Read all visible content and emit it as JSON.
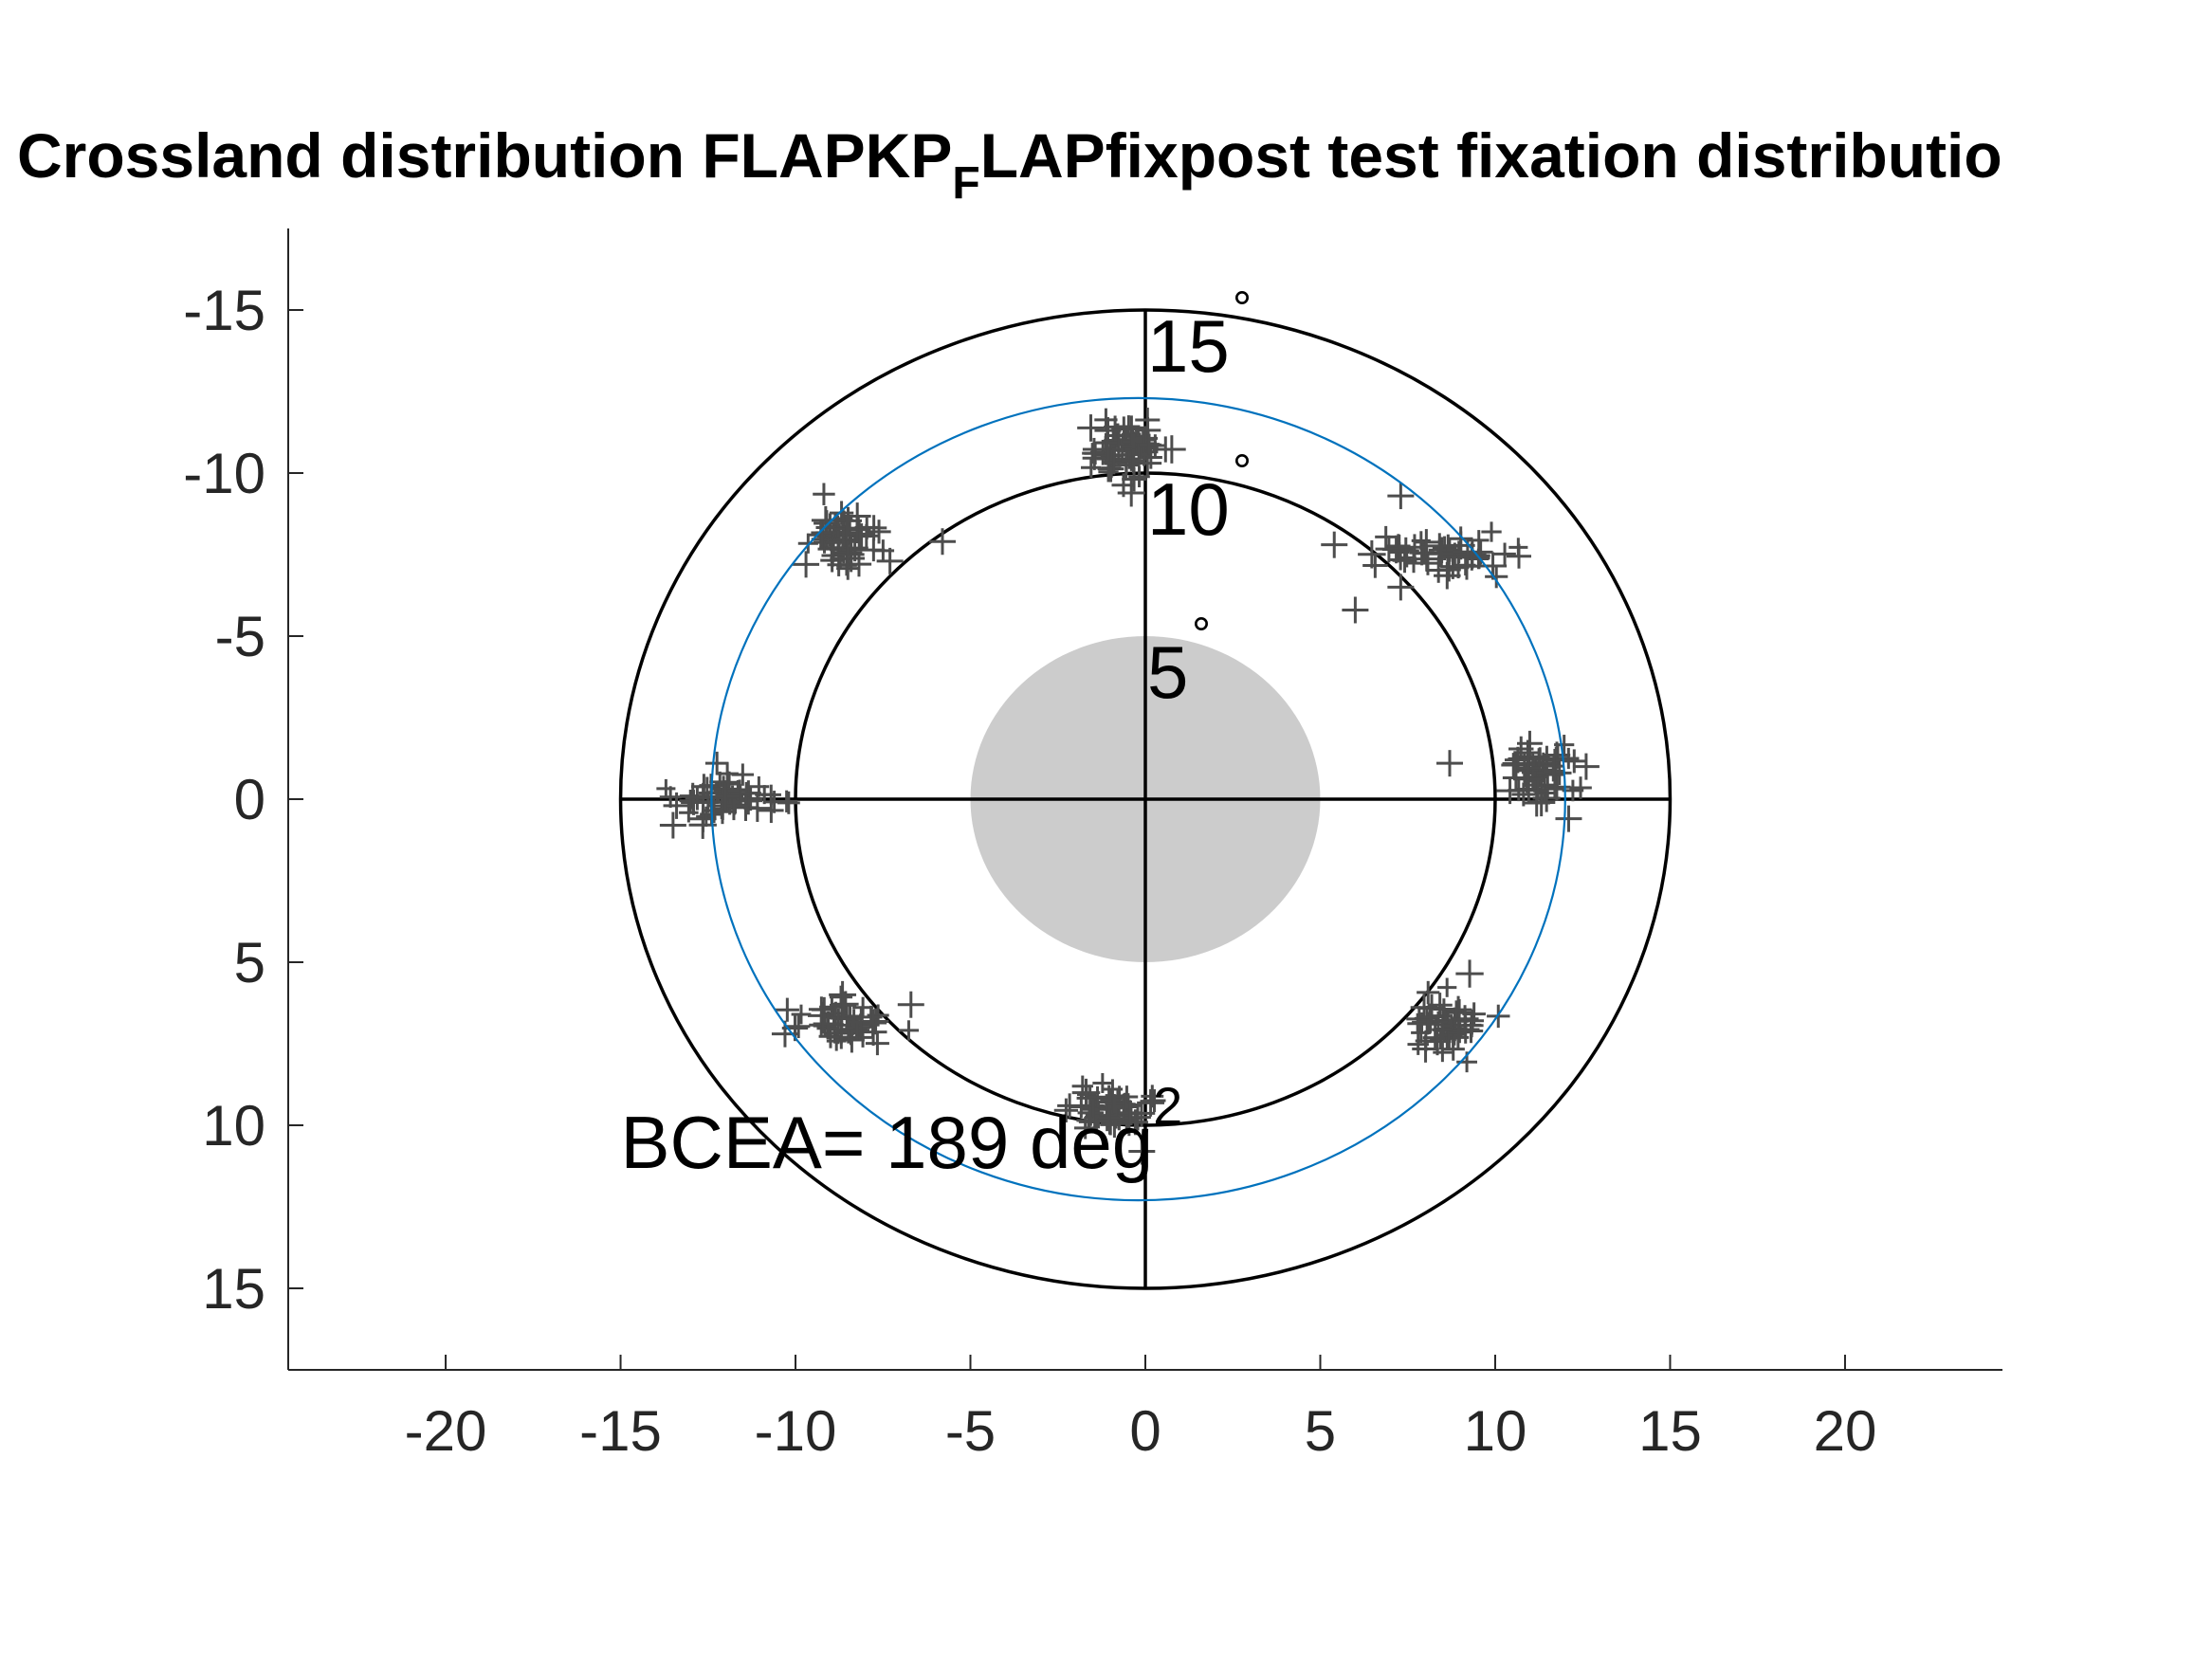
{
  "chart_data": {
    "type": "scatter",
    "title": {
      "prefix": "Crossland distribution FLAPKP",
      "subscript": "F",
      "suffix": "LAPfixpost test fixation distributio"
    },
    "xlabel": "",
    "ylabel": "",
    "xlim": [
      -24.5,
      24.5
    ],
    "ylim": [
      -17.5,
      17.5
    ],
    "y_axis_reversed": true,
    "x_ticks": [
      "-20",
      "-15",
      "-10",
      "-5",
      "0",
      "5",
      "10",
      "15",
      "20"
    ],
    "x_tick_values": [
      -20,
      -15,
      -10,
      -5,
      0,
      5,
      10,
      15,
      20
    ],
    "y_ticks": [
      "-15",
      "-10",
      "-5",
      "0",
      "5",
      "10",
      "15"
    ],
    "y_tick_values": [
      -15,
      -10,
      -5,
      0,
      5,
      10,
      15
    ],
    "grid": false,
    "rings": [
      {
        "radius": 5,
        "label": "5",
        "style": "filled",
        "color": "#cccccc"
      },
      {
        "radius": 10,
        "label": "10",
        "style": "outline",
        "color": "#000000"
      },
      {
        "radius": 15,
        "label": "15",
        "style": "outline",
        "color": "#000000"
      }
    ],
    "degree_symbol": "°",
    "crosshair": {
      "extent": 15,
      "color": "#000000"
    },
    "bcea_ellipse": {
      "center": [
        -0.2,
        0
      ],
      "rx": 12.2,
      "ry": 12.3,
      "color": "#0072bd"
    },
    "annotation": {
      "text": "BCEA= 189 deg",
      "superscript": "2",
      "x": -15,
      "y": 10.5
    },
    "marker": {
      "symbol": "+",
      "color": "#4d4d4d"
    },
    "clusters": [
      {
        "name": "top",
        "x": -0.6,
        "y": -10.8,
        "sx": 0.55,
        "sy": 0.45,
        "n": 70
      },
      {
        "name": "upper-right",
        "x": 8.5,
        "y": -7.5,
        "sx": 0.9,
        "sy": 0.35,
        "n": 55
      },
      {
        "name": "right",
        "x": 11.2,
        "y": -0.8,
        "sx": 0.5,
        "sy": 0.45,
        "n": 60
      },
      {
        "name": "lower-right",
        "x": 8.6,
        "y": 7.0,
        "sx": 0.5,
        "sy": 0.45,
        "n": 55
      },
      {
        "name": "bottom",
        "x": -1.1,
        "y": 9.5,
        "sx": 0.5,
        "sy": 0.35,
        "n": 55
      },
      {
        "name": "lower-left",
        "x": -8.8,
        "y": 6.8,
        "sx": 0.7,
        "sy": 0.3,
        "n": 50
      },
      {
        "name": "left",
        "x": -12.0,
        "y": 0.0,
        "sx": 0.7,
        "sy": 0.35,
        "n": 60
      },
      {
        "name": "upper-left",
        "x": -8.6,
        "y": -8.0,
        "sx": 0.5,
        "sy": 0.45,
        "n": 55
      }
    ],
    "outliers": [
      {
        "x": 6.0,
        "y": -5.8
      },
      {
        "x": 5.4,
        "y": -7.8
      },
      {
        "x": 7.3,
        "y": -9.3
      },
      {
        "x": 7.3,
        "y": -6.5
      },
      {
        "x": 8.7,
        "y": -1.1
      },
      {
        "x": 12.1,
        "y": 0.6
      },
      {
        "x": 12.6,
        "y": -1.0
      },
      {
        "x": -6.7,
        "y": 6.3
      },
      {
        "x": -10.3,
        "y": 7.2
      },
      {
        "x": -0.1,
        "y": 10.8
      },
      {
        "x": -13.4,
        "y": 0.2
      },
      {
        "x": -13.5,
        "y": 0.8
      },
      {
        "x": -9.7,
        "y": -7.2
      },
      {
        "x": -5.8,
        "y": -7.9
      },
      {
        "x": -7.3,
        "y": -7.3
      }
    ]
  }
}
